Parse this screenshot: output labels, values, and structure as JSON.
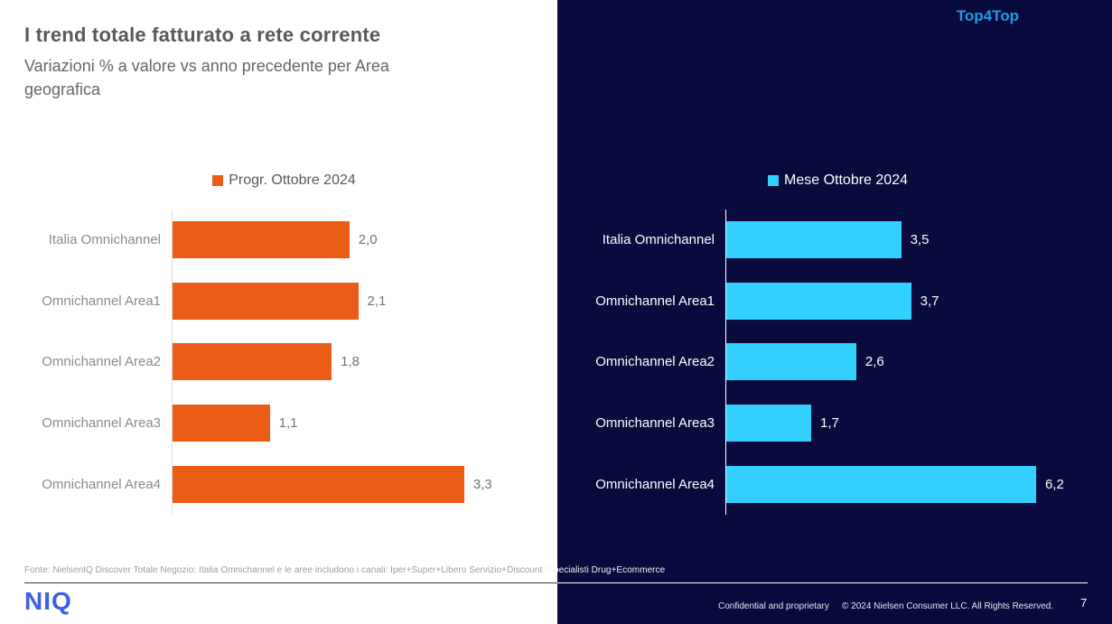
{
  "header": {
    "title": "I trend totale fatturato a rete corrente",
    "subtitle": "Variazioni % a valore vs anno precedente per Area geografica"
  },
  "badge": {
    "label": "Top4Top"
  },
  "chart_data": [
    {
      "type": "bar",
      "orientation": "horizontal",
      "legend": "Progr. Ottobre 2024",
      "legend_position": "top",
      "bar_color": "#EB5C16",
      "categories": [
        "Italia Omnichannel",
        "Omnichannel Area1",
        "Omnichannel Area2",
        "Omnichannel Area3",
        "Omnichannel Area4"
      ],
      "values": [
        2.0,
        2.1,
        1.8,
        1.1,
        3.3
      ],
      "value_labels": [
        "2,0",
        "2,1",
        "1,8",
        "1,1",
        "3,3"
      ],
      "xlim": [
        0,
        4.2
      ],
      "grid": false,
      "title": "",
      "xlabel": "",
      "ylabel": ""
    },
    {
      "type": "bar",
      "orientation": "horizontal",
      "legend": "Mese Ottobre 2024",
      "legend_position": "top",
      "bar_color": "#33CFFE",
      "categories": [
        "Italia Omnichannel",
        "Omnichannel Area1",
        "Omnichannel Area2",
        "Omnichannel Area3",
        "Omnichannel Area4"
      ],
      "values": [
        3.5,
        3.7,
        2.6,
        1.7,
        6.2
      ],
      "value_labels": [
        "3,5",
        "3,7",
        "2,6",
        "1,7",
        "6,2"
      ],
      "xlim": [
        0,
        7.43
      ],
      "grid": false,
      "title": "",
      "xlabel": "",
      "ylabel": ""
    }
  ],
  "footnote": {
    "text_on_light": "Fonte: NielsenIQ Discover Totale Negozio; Italia Omnichannel e le aree includono i canali: Iper+Super+Libero Servizio+Discount",
    "text_on_dark": "+Specialisti Drug+Ecommerce"
  },
  "footer": {
    "logo": "NIQ",
    "confidential": "Confidential and proprietary",
    "copyright": "© 2024 Nielsen Consumer LLC. All Rights Reserved.",
    "page_number": "7"
  },
  "colors": {
    "accent_orange": "#EB5C16",
    "accent_cyan": "#33CFFE",
    "panel_navy": "#080B3C",
    "brand_blue": "#3D5FE0",
    "top4top_blue": "#1E9BE9"
  }
}
